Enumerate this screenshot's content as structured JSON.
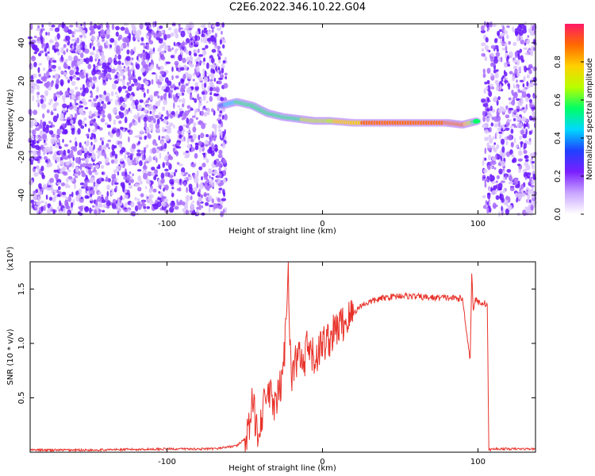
{
  "chart_data": [
    {
      "type": "heatmap",
      "title": "C2E6.2022.346.10.22.G04",
      "xlabel": "Height of straight line (km)",
      "ylabel": "Frequency (Hz)",
      "xlim": [
        -188,
        137
      ],
      "ylim": [
        -50,
        50
      ],
      "x_ticks": [
        -100,
        0,
        100
      ],
      "y_ticks": [
        -40,
        -20,
        0,
        20,
        40
      ],
      "colorbar": {
        "label": "Normalized spectral amplitude",
        "range": [
          0,
          1
        ],
        "ticks": [
          "0.0",
          "0.2",
          "0.4",
          "0.6",
          "0.8"
        ],
        "colormap": [
          "#ffffff",
          "#c9a6ff",
          "#7b1fff",
          "#2040ff",
          "#00d8ff",
          "#00ff66",
          "#b8ff00",
          "#ffd000",
          "#ff6a00",
          "#ff1a66"
        ]
      },
      "noise_regions_x": [
        [
          -188,
          -62
        ],
        [
          103,
          137
        ]
      ],
      "signal_trace": {
        "x": [
          -65,
          -55,
          -45,
          -35,
          -25,
          -15,
          -5,
          5,
          20,
          40,
          60,
          80,
          90,
          100
        ],
        "freq": [
          7,
          9,
          7,
          3,
          1,
          0,
          -1,
          -1,
          -2,
          -2,
          -2,
          -2,
          -3,
          -1
        ],
        "amplitude": [
          0.35,
          0.5,
          0.55,
          0.5,
          0.6,
          0.6,
          0.65,
          0.7,
          0.8,
          0.9,
          0.9,
          0.85,
          0.9,
          0.5
        ]
      }
    },
    {
      "type": "line",
      "xlabel": "Height of straight line (km)",
      "ylabel": "SNR (10 * v/v)",
      "y_scale_label": "(x10⁴)",
      "xlim": [
        -188,
        137
      ],
      "ylim": [
        0,
        1.75
      ],
      "x_ticks": [
        -100,
        0,
        100
      ],
      "y_ticks": [
        0.5,
        1.0,
        1.5
      ],
      "y_tick_labels": [
        "0.5",
        "1.0",
        "1.5"
      ],
      "color": "#e8322a",
      "series": [
        {
          "x": [
            -188,
            -150,
            -100,
            -70,
            -55,
            -48,
            -45,
            -42,
            -40,
            -35,
            -30,
            -25,
            -22,
            -20,
            -18,
            -15,
            -12,
            -10,
            -5,
            0,
            5,
            10,
            15,
            20,
            25,
            30,
            40,
            50,
            60,
            70,
            80,
            90,
            95,
            96,
            97,
            98,
            100,
            104,
            106,
            107,
            110,
            137
          ],
          "y": [
            0.02,
            0.02,
            0.03,
            0.03,
            0.06,
            0.15,
            0.45,
            0.2,
            0.3,
            0.55,
            0.4,
            0.75,
            1.7,
            0.6,
            0.8,
            0.9,
            0.75,
            0.95,
            0.85,
            1.0,
            1.05,
            1.15,
            1.2,
            1.28,
            1.35,
            1.38,
            1.42,
            1.44,
            1.43,
            1.42,
            1.42,
            1.41,
            0.85,
            1.65,
            1.3,
            1.4,
            1.38,
            1.37,
            1.36,
            0.02,
            0.03,
            0.03
          ]
        }
      ]
    }
  ]
}
